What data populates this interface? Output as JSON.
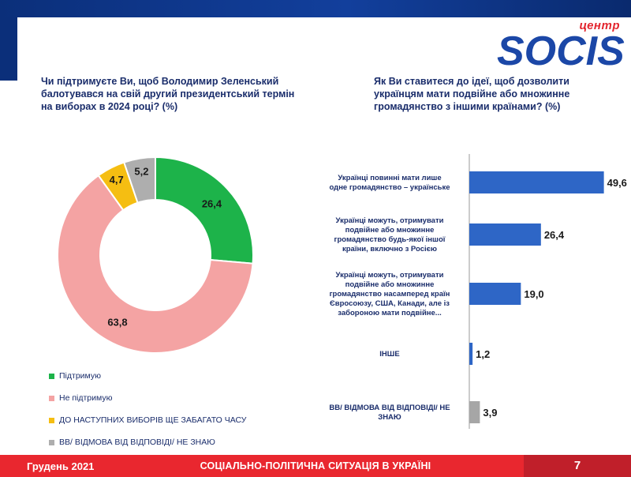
{
  "brand": {
    "logo_small": "центр",
    "logo_main": "SOCIS",
    "logo_color": "#1b47a7",
    "logo_accent": "#e3262f"
  },
  "left_question": "Чи підтримуєте Ви, щоб Володимир Зеленський балотувався на свій другий президентський термін на виборах в 2024 році? (%)",
  "right_question": "Як Ви ставитеся до ідеї, щоб дозволити українцям мати подвійне або множинне громадянство з іншими країнами? (%)",
  "footer": {
    "date": "Грудень 2021",
    "title": "СОЦІАЛЬНО-ПОЛІТИЧНА СИТУАЦІЯ В УКРАЇНІ",
    "page": "7",
    "bar_color": "#e9272f"
  },
  "chart_data": [
    {
      "type": "pie",
      "donut": true,
      "slices": [
        {
          "label": "Підтримую",
          "value": 26.4,
          "display": "26,4",
          "color": "#1db34a"
        },
        {
          "label": "Не підтримую",
          "value": 63.8,
          "display": "63,8",
          "color": "#f4a3a3"
        },
        {
          "label": "ДО НАСТУПНИХ ВИБОРІВ ЩЕ ЗАБАГАТО ЧАСУ",
          "value": 4.7,
          "display": "4,7",
          "color": "#f5be12"
        },
        {
          "label": "ВВ/ ВІДМОВА ВІД ВІДПОВІДІ/ НЕ ЗНАЮ",
          "value": 5.2,
          "display": "5,2",
          "color": "#aeaeae"
        }
      ],
      "legend_position": "bottom"
    },
    {
      "type": "bar",
      "orientation": "horizontal",
      "categories": [
        [
          "Українці повинні мати лише",
          "одне громадянство – українське"
        ],
        [
          "Українці можуть, отримувати",
          "подвійне або множинне",
          "громадянство будь-якої іншої",
          "країни, включно з Росією"
        ],
        [
          "Українці можуть, отримувати",
          "подвійне або множинне",
          "громадянство насамперед країн",
          "Євросоюзу, США, Канади, але із",
          "забороною мати подвійне..."
        ],
        [
          "ІНШЕ"
        ],
        [
          "ВВ/ ВІДМОВА ВІД ВІДПОВІДІ/ НЕ",
          "ЗНАЮ"
        ]
      ],
      "values": [
        49.6,
        26.4,
        19.0,
        1.2,
        3.9
      ],
      "display": [
        "49,6",
        "26,4",
        "19,0",
        "1,2",
        "3,9"
      ],
      "colors": [
        "#2e66c6",
        "#2e66c6",
        "#2e66c6",
        "#2e66c6",
        "#a6a6a6"
      ],
      "xlim": [
        0,
        50
      ]
    }
  ]
}
